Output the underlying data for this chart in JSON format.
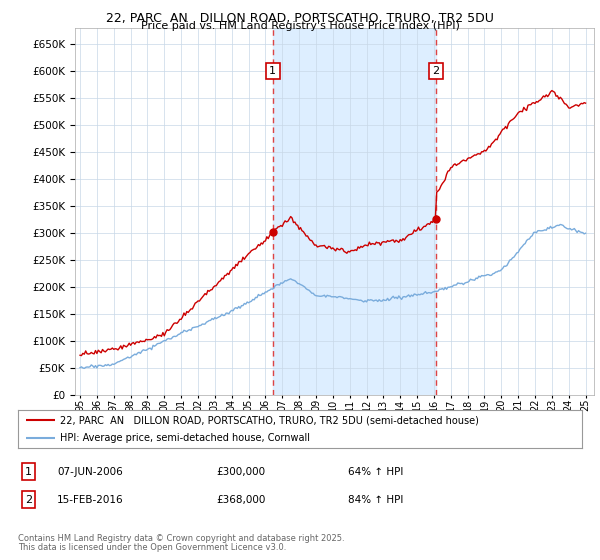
{
  "title1": "22, PARC  AN   DILLON ROAD, PORTSCATHO, TRURO, TR2 5DU",
  "title2": "Price paid vs. HM Land Registry's House Price Index (HPI)",
  "bg_color": "#ffffff",
  "plot_bg_color": "#ffffff",
  "grid_color": "#c8d8e8",
  "red_color": "#cc0000",
  "blue_color": "#7aacdc",
  "shade_color": "#ddeeff",
  "dashed_color": "#dd4444",
  "ylim": [
    0,
    680000
  ],
  "yticks": [
    0,
    50000,
    100000,
    150000,
    200000,
    250000,
    300000,
    350000,
    400000,
    450000,
    500000,
    550000,
    600000,
    650000
  ],
  "event1_year": 2006.44,
  "event1_label": "1",
  "event1_price": 300000,
  "event2_year": 2016.12,
  "event2_label": "2",
  "event2_price": 368000,
  "legend_line1": "22, PARC  AN   DILLON ROAD, PORTSCATHO, TRURO, TR2 5DU (semi-detached house)",
  "legend_line2": "HPI: Average price, semi-detached house, Cornwall",
  "table_row1": [
    "1",
    "07-JUN-2006",
    "£300,000",
    "64% ↑ HPI"
  ],
  "table_row2": [
    "2",
    "15-FEB-2016",
    "£368,000",
    "84% ↑ HPI"
  ],
  "footer1": "Contains HM Land Registry data © Crown copyright and database right 2025.",
  "footer2": "This data is licensed under the Open Government Licence v3.0."
}
